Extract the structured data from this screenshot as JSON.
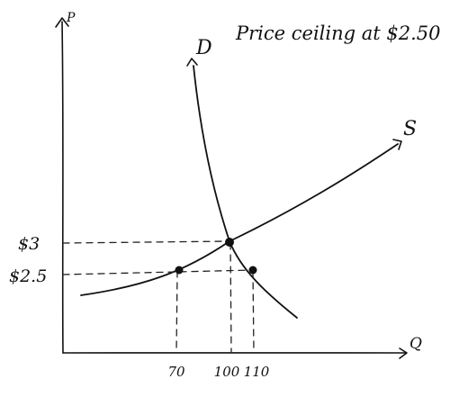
{
  "title": "Price ceiling at $2.50",
  "axes": {
    "y_label": "P",
    "x_label": "Q"
  },
  "curves": {
    "demand_label": "D",
    "supply_label": "S"
  },
  "price_ticks": [
    "$3",
    "$2.5"
  ],
  "quantity_ticks": [
    "70",
    "100",
    "110"
  ],
  "chart_data": {
    "type": "line",
    "title": "Price ceiling at $2.50",
    "xlabel": "Q",
    "ylabel": "P",
    "series": [
      {
        "name": "D"
      },
      {
        "name": "S"
      }
    ],
    "equilibrium": {
      "q": 100,
      "p": 3
    },
    "ceiling_price": 2.5,
    "quantity_supplied_at_ceiling": 70,
    "quantity_demanded_at_ceiling": 110
  }
}
